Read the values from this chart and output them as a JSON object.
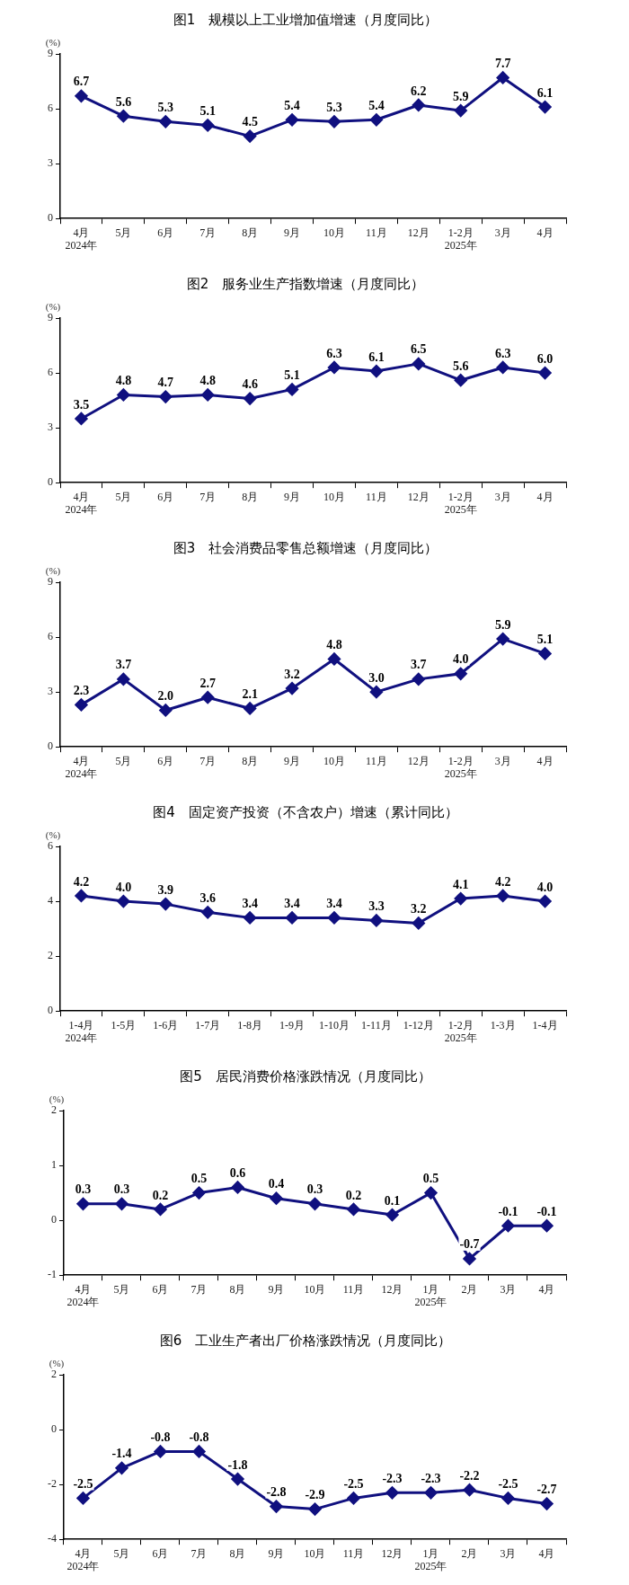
{
  "chart_data": [
    {
      "type": "line",
      "title": "图1　规模以上工业增加值增速（月度同比）",
      "ylabel": "(%)",
      "categories": [
        "4月\n2024年",
        "5月",
        "6月",
        "7月",
        "8月",
        "9月",
        "10月",
        "11月",
        "12月",
        "1-2月\n2025年",
        "3月",
        "4月"
      ],
      "values": [
        6.7,
        5.6,
        5.3,
        5.1,
        4.5,
        5.4,
        5.3,
        5.4,
        6.2,
        5.9,
        7.7,
        6.1
      ],
      "color": "#10107f",
      "ylim": [
        0,
        9
      ],
      "yticks": [
        0,
        3,
        6,
        9
      ],
      "marker": "diamond",
      "line_style": "solid",
      "data_labels": true,
      "grid": false,
      "legend": false
    },
    {
      "type": "line",
      "title": "图2　服务业生产指数增速（月度同比）",
      "ylabel": "(%)",
      "categories": [
        "4月\n2024年",
        "5月",
        "6月",
        "7月",
        "8月",
        "9月",
        "10月",
        "11月",
        "12月",
        "1-2月\n2025年",
        "3月",
        "4月"
      ],
      "values": [
        3.5,
        4.8,
        4.7,
        4.8,
        4.6,
        5.1,
        6.3,
        6.1,
        6.5,
        5.6,
        6.3,
        6.0
      ],
      "value_labels": [
        "3.5",
        "4.8",
        "4.7",
        "4.8",
        "4.6",
        "5.1",
        "6.3",
        "6.1",
        "6.5",
        "5.6",
        "6.3",
        "6.0"
      ],
      "color": "#10107f",
      "ylim": [
        0,
        9
      ],
      "yticks": [
        0,
        3,
        6,
        9
      ],
      "marker": "diamond",
      "line_style": "solid",
      "grid": false,
      "legend": false
    },
    {
      "type": "line",
      "title": "图3　社会消费品零售总额增速（月度同比）",
      "ylabel": "(%)",
      "categories": [
        "4月\n2024年",
        "5月",
        "6月",
        "7月",
        "8月",
        "9月",
        "10月",
        "11月",
        "12月",
        "1-2月\n2025年",
        "3月",
        "4月"
      ],
      "values": [
        2.3,
        3.7,
        2.0,
        2.7,
        2.1,
        3.2,
        4.8,
        3.0,
        3.7,
        4.0,
        5.9,
        5.1
      ],
      "value_labels": [
        "2.3",
        "3.7",
        "2.0",
        "2.7",
        "2.1",
        "3.2",
        "4.8",
        "3.0",
        "3.7",
        "4.0",
        "5.9",
        "5.1"
      ],
      "color": "#10107f",
      "ylim": [
        0,
        9
      ],
      "yticks": [
        0,
        3,
        6,
        9
      ],
      "marker": "diamond",
      "line_style": "solid",
      "grid": false,
      "legend": false
    },
    {
      "type": "line",
      "title": "图4　固定资产投资（不含农户）增速（累计同比）",
      "ylabel": "(%)",
      "categories": [
        "1-4月\n2024年",
        "1-5月",
        "1-6月",
        "1-7月",
        "1-8月",
        "1-9月",
        "1-10月",
        "1-11月",
        "1-12月",
        "1-2月\n2025年",
        "1-3月",
        "1-4月"
      ],
      "values": [
        4.2,
        4.0,
        3.9,
        3.6,
        3.4,
        3.4,
        3.4,
        3.3,
        3.2,
        4.1,
        4.2,
        4.0
      ],
      "value_labels": [
        "4.2",
        "4.0",
        "3.9",
        "3.6",
        "3.4",
        "3.4",
        "3.4",
        "3.3",
        "3.2",
        "4.1",
        "4.2",
        "4.0"
      ],
      "color": "#10107f",
      "ylim": [
        0,
        6
      ],
      "yticks": [
        0,
        2,
        4,
        6
      ],
      "marker": "diamond",
      "line_style": "solid",
      "grid": false,
      "legend": false
    },
    {
      "type": "line",
      "title": "图5　居民消费价格涨跌情况（月度同比）",
      "ylabel": "(%)",
      "categories": [
        "4月\n2024年",
        "5月",
        "6月",
        "7月",
        "8月",
        "9月",
        "10月",
        "11月",
        "12月",
        "1月\n2025年",
        "2月",
        "3月",
        "4月"
      ],
      "values": [
        0.3,
        0.3,
        0.2,
        0.5,
        0.6,
        0.4,
        0.3,
        0.2,
        0.1,
        0.5,
        -0.7,
        -0.1,
        -0.1
      ],
      "color": "#10107f",
      "ylim": [
        -1,
        2
      ],
      "yticks": [
        -1,
        0,
        1,
        2
      ],
      "marker": "diamond",
      "line_style": "solid",
      "data_labels": true,
      "grid": false,
      "legend": false
    },
    {
      "type": "line",
      "title": "图6　工业生产者出厂价格涨跌情况（月度同比）",
      "ylabel": "(%)",
      "categories": [
        "4月\n2024年",
        "5月",
        "6月",
        "7月",
        "8月",
        "9月",
        "10月",
        "11月",
        "12月",
        "1月\n2025年",
        "2月",
        "3月",
        "4月"
      ],
      "values": [
        -2.5,
        -1.4,
        -0.8,
        -0.8,
        -1.8,
        -2.8,
        -2.9,
        -2.5,
        -2.3,
        -2.3,
        -2.2,
        -2.5,
        -2.7
      ],
      "color": "#10107f",
      "ylim": [
        -4,
        2
      ],
      "yticks": [
        -4,
        -2,
        0,
        2
      ],
      "marker": "diamond",
      "line_style": "solid",
      "data_labels": true,
      "grid": false,
      "legend": false
    }
  ]
}
